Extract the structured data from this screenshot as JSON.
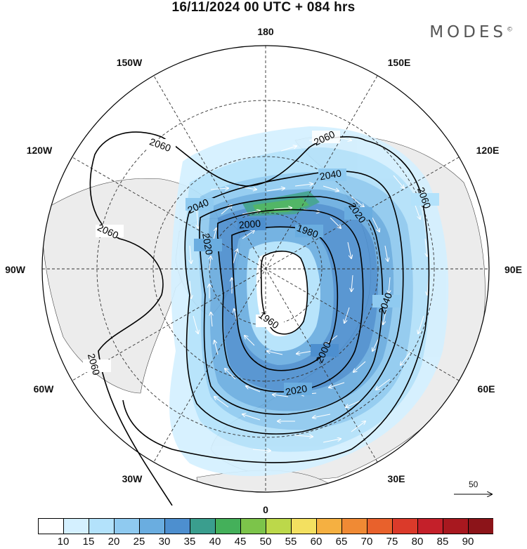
{
  "title": "16/11/2024  00 UTC  + 084 hrs",
  "logo": "MODES",
  "logo_mark": "©",
  "longitude_labels": {
    "l180": "180",
    "l150e": "150E",
    "l120e": "120E",
    "l90e": "90E",
    "l60e": "60E",
    "l30e": "30E",
    "l0": "0",
    "l30w": "30W",
    "l60w": "60W",
    "l90w": "90W",
    "l120w": "120W",
    "l150w": "150W"
  },
  "contour_labels": {
    "c2060a": "2060",
    "c2060b": "2060",
    "c2060c": "2060",
    "c2060d": "2060",
    "c2060e": "2060",
    "c2040a": "2040",
    "c2040b": "2040",
    "c2040c": "2040",
    "c2020a": "2020",
    "c2020b": "2020",
    "c2020c": "2020",
    "c2000a": "2000",
    "c2000b": "2000",
    "c1980": "1980",
    "c1960": "1960"
  },
  "vector_scale": {
    "value": "50"
  },
  "colorbar": {
    "colors": [
      "#ffffff",
      "#d4f0ff",
      "#b3e2fb",
      "#8fcaf0",
      "#6aade0",
      "#4d8fcf",
      "#3a9e8e",
      "#44b05a",
      "#7cc44a",
      "#bcd84a",
      "#f3e060",
      "#f5b041",
      "#f08a34",
      "#e8612c",
      "#db3a2a",
      "#c4202a",
      "#a8181f",
      "#8c1419"
    ],
    "ticks": [
      "10",
      "15",
      "20",
      "25",
      "30",
      "35",
      "40",
      "45",
      "50",
      "55",
      "60",
      "65",
      "70",
      "75",
      "80",
      "85",
      "90"
    ]
  }
}
